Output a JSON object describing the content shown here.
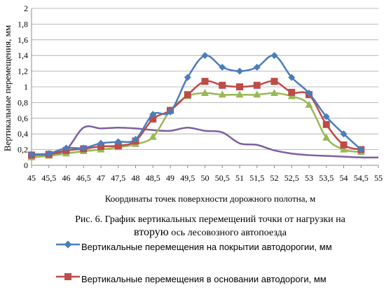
{
  "chart_data": {
    "type": "line",
    "ylabel": "Вертикальные перемещения, мм",
    "xlabel": "Координаты точек поверхности дорожного полотна, м",
    "ylim": [
      0,
      2
    ],
    "yticks": [
      "0",
      "0,2",
      "0,4",
      "0,6",
      "0,8",
      "1",
      "1,2",
      "1,4",
      "1,6",
      "1,8",
      "2"
    ],
    "ytick_values": [
      0,
      0.2,
      0.4,
      0.6,
      0.8,
      1.0,
      1.2,
      1.4,
      1.6,
      1.8,
      2.0
    ],
    "x": [
      45,
      45.5,
      46,
      46.5,
      47,
      47.5,
      48,
      48.5,
      49,
      49.5,
      50,
      50.5,
      51,
      51.5,
      52,
      52.5,
      53,
      53.5,
      54,
      54.5,
      55
    ],
    "xticks": [
      "45",
      "45,5",
      "46",
      "46,5",
      "47",
      "47,5",
      "48",
      "48,5",
      "49",
      "49,5",
      "50",
      "50,5",
      "51",
      "51,5",
      "52",
      "52,5",
      "53",
      "53,5",
      "54",
      "54,5",
      "55"
    ],
    "grid": "horizontal",
    "series": [
      {
        "name": "Вертикальные перемещения  на покрытии автодорогии, мм",
        "color": "#4a7ebb",
        "marker": "diamond",
        "values": [
          0.14,
          0.15,
          0.22,
          0.22,
          0.28,
          0.3,
          0.33,
          0.65,
          0.68,
          1.12,
          1.4,
          1.25,
          1.2,
          1.25,
          1.4,
          1.12,
          0.92,
          0.62,
          0.4,
          0.2,
          null
        ]
      },
      {
        "name": "Вертикальные перемещения  в основании автодороги, мм",
        "color": "#be4b48",
        "marker": "square",
        "values": [
          0.13,
          0.14,
          0.19,
          0.21,
          0.24,
          0.25,
          0.31,
          0.59,
          0.7,
          0.9,
          1.07,
          1.02,
          1.0,
          1.02,
          1.07,
          0.93,
          0.9,
          0.52,
          0.26,
          0.2,
          null
        ]
      },
      {
        "color": "#98b954",
        "marker": "triangle",
        "values": [
          0.1,
          0.12,
          0.15,
          0.18,
          0.2,
          0.23,
          0.27,
          0.36,
          0.7,
          0.88,
          0.92,
          0.9,
          0.9,
          0.9,
          0.92,
          0.88,
          0.77,
          0.35,
          0.2,
          0.17,
          null
        ]
      },
      {
        "color": "#7d60a0",
        "marker": "none",
        "values": [
          0.14,
          0.14,
          0.2,
          0.48,
          0.47,
          0.48,
          0.47,
          0.45,
          0.44,
          0.48,
          0.44,
          0.42,
          0.28,
          0.26,
          0.19,
          0.15,
          0.13,
          0.12,
          0.11,
          0.1,
          0.1
        ]
      }
    ]
  },
  "caption": {
    "line1": "Рис. 6. График вертикальных перемещений точки от нагрузки на",
    "line2_emph": "вторую",
    "line2_rest": " ось  лесовозного автопоезда"
  },
  "legend": [
    {
      "label": "Вертикальные перемещения  на покрытии автодорогии, мм"
    },
    {
      "label": "Вертикальные перемещения  в основании автодороги, мм"
    }
  ]
}
